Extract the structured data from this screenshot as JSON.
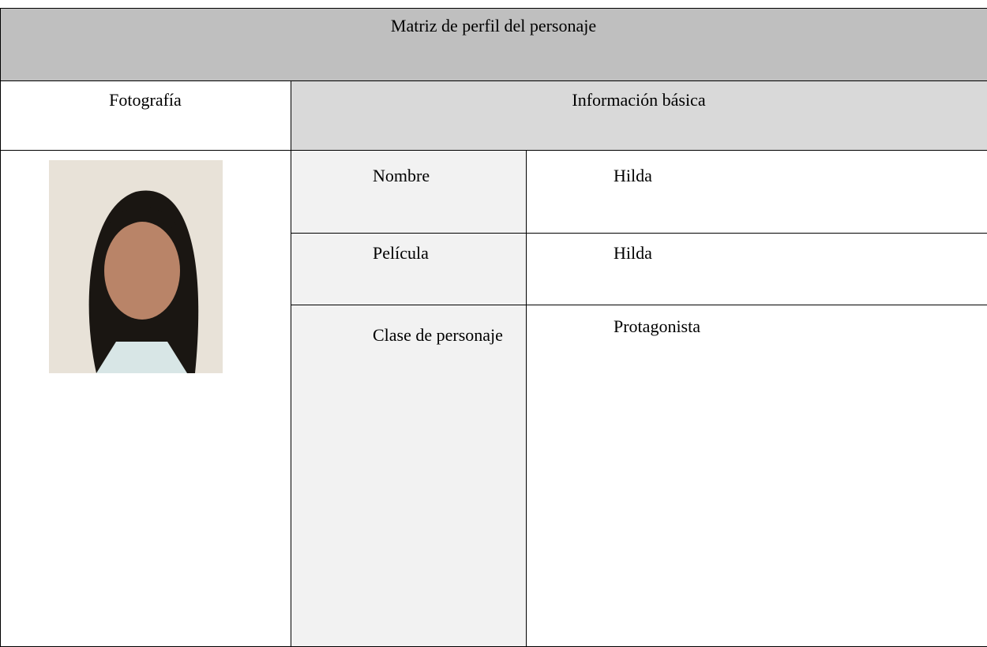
{
  "header": {
    "title": "Matriz de perfil del personaje"
  },
  "table": {
    "headers": [
      "Fotografía",
      "Información básica"
    ],
    "rows": [
      [
        "Nombre",
        "Hilda"
      ],
      [
        "Película",
        "Hilda"
      ],
      [
        "Clase de personaje",
        "Protagonista"
      ]
    ]
  }
}
